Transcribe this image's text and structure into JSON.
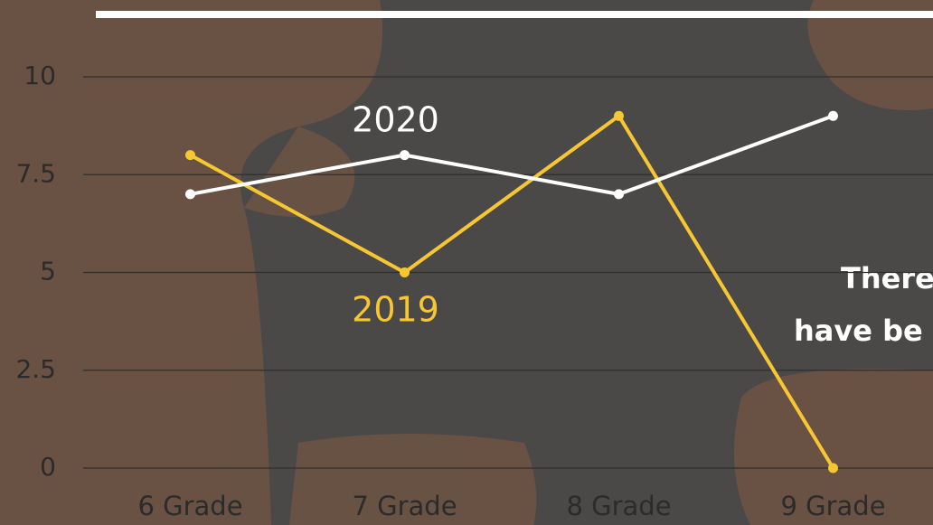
{
  "chart_data": {
    "type": "line",
    "categories": [
      "6 Grade",
      "7 Grade",
      "8 Grade",
      "9 Grade"
    ],
    "series": [
      {
        "name": "2019",
        "color": "#f7c633",
        "values": [
          8,
          5,
          9,
          0
        ]
      },
      {
        "name": "2020",
        "color": "#ffffff",
        "values": [
          7,
          8,
          7,
          9
        ]
      }
    ],
    "ylim": [
      0,
      10
    ],
    "yticks": [
      0,
      2.5,
      5,
      7.5,
      10
    ],
    "grid": true,
    "annotations": [
      "There",
      "have be"
    ]
  }
}
